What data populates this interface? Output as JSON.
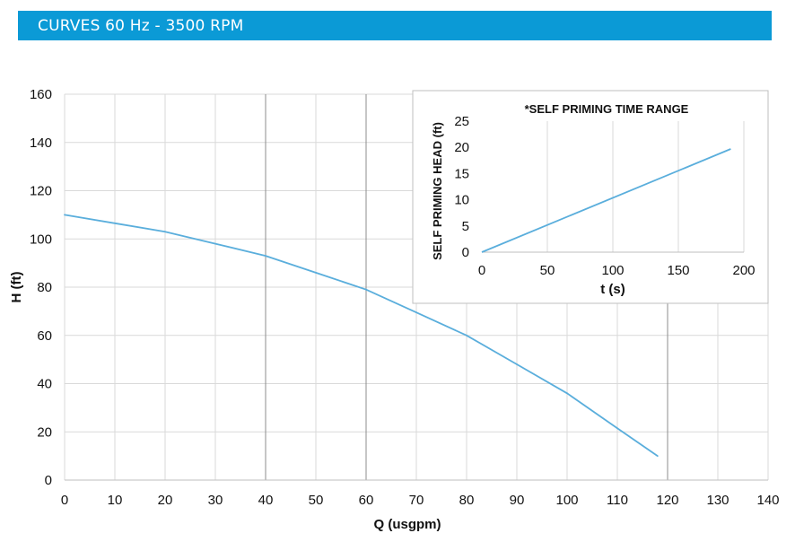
{
  "header": {
    "title": "CURVES 60 Hz - 3500 RPM",
    "bg_color": "#0b9ad6"
  },
  "chart_data": [
    {
      "id": "main",
      "type": "line",
      "title": "",
      "xlabel": "Q (usgpm)",
      "ylabel": "H (ft)",
      "xlim": [
        0,
        140
      ],
      "ylim": [
        0,
        160
      ],
      "xticks": [
        0,
        10,
        20,
        30,
        40,
        50,
        60,
        70,
        80,
        90,
        100,
        110,
        120,
        130,
        140
      ],
      "yticks": [
        0,
        20,
        40,
        60,
        80,
        100,
        120,
        140,
        160
      ],
      "grid": true,
      "series": [
        {
          "name": "H",
          "color": "#5aaedc",
          "x": [
            0,
            10,
            20,
            30,
            40,
            50,
            60,
            70,
            80,
            90,
            100,
            110,
            118
          ],
          "y": [
            110,
            106.5,
            103,
            98,
            93,
            86,
            79,
            69.5,
            60,
            48,
            36,
            21.5,
            10
          ]
        }
      ]
    },
    {
      "id": "inset",
      "type": "line",
      "title": "*SELF PRIMING TIME RANGE",
      "xlabel": "t (s)",
      "ylabel": "SELF PRIMING HEAD (ft)",
      "xlim": [
        0,
        200
      ],
      "ylim": [
        0,
        25
      ],
      "xticks": [
        0,
        50,
        100,
        150,
        200
      ],
      "yticks": [
        0,
        5,
        10,
        15,
        20,
        25
      ],
      "grid": true,
      "series": [
        {
          "name": "Self priming head",
          "color": "#5aaedc",
          "x": [
            0,
            190
          ],
          "y": [
            0,
            19.7
          ]
        }
      ]
    }
  ]
}
